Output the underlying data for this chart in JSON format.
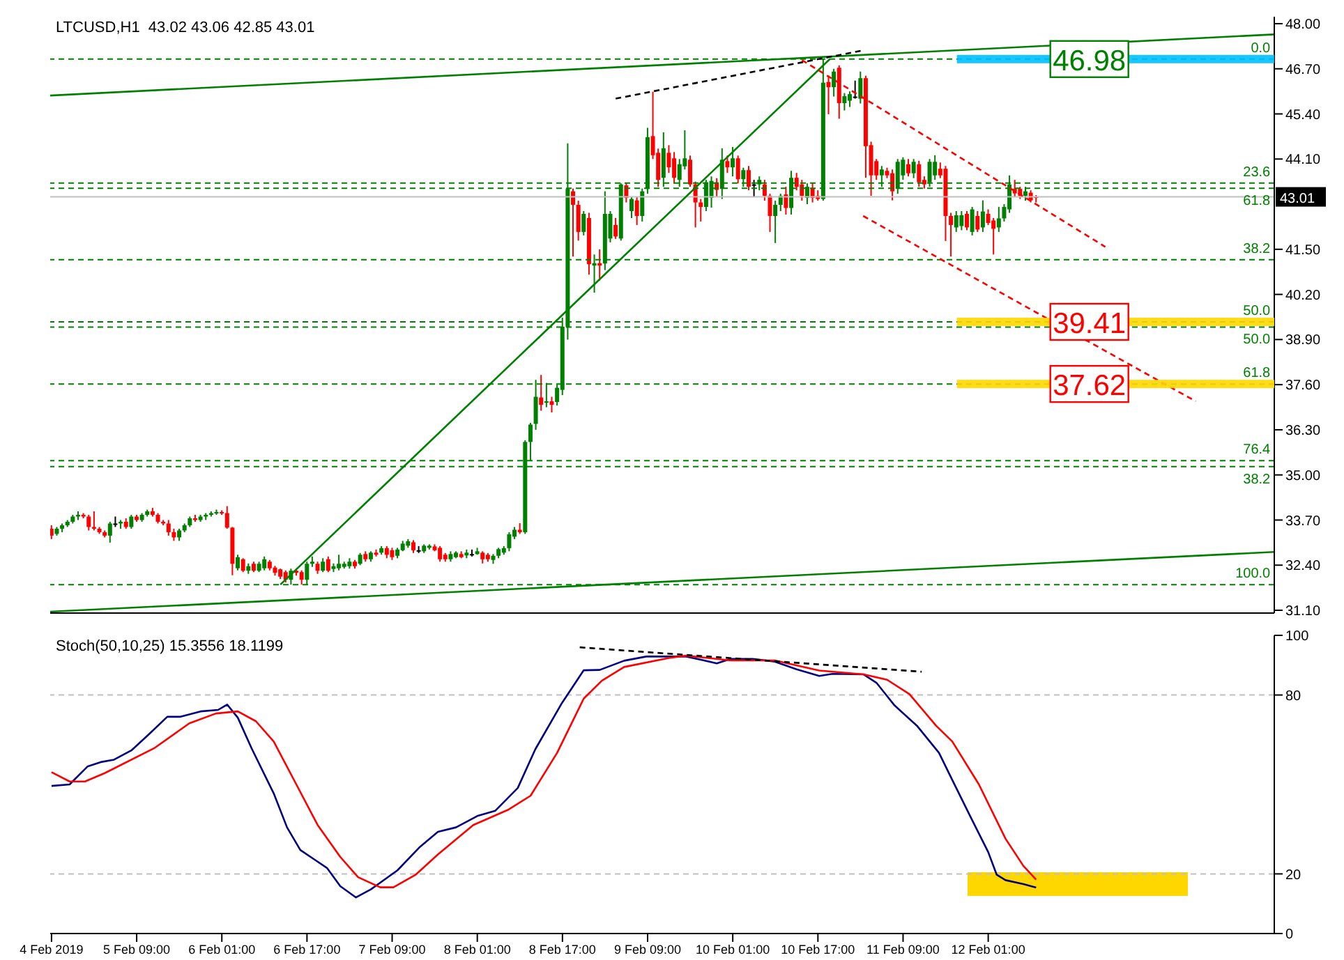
{
  "chart_data": [
    {
      "type": "candlestick",
      "title": "LTCUSD,H1  43.02 43.06 42.85 43.01",
      "xlim": [
        "2019-02-04T16:45",
        "2019-02-14T06:45"
      ],
      "tick_labels": "y",
      "ylim": [
        31.02,
        48.2
      ],
      "yticks": [
        {
          "value": 48,
          "label": "48.00"
        },
        {
          "value": 46.7,
          "label": "46.70"
        },
        {
          "value": 45.4,
          "label": "45.40"
        },
        {
          "value": 44.1,
          "label": "44.10"
        },
        {
          "value": 41.5,
          "label": "41.50"
        },
        {
          "value": 40.2,
          "label": "40.20"
        },
        {
          "value": 38.9,
          "label": "38.90"
        },
        {
          "value": 37.6,
          "label": "37.60"
        },
        {
          "value": 36.3,
          "label": "36.30"
        },
        {
          "value": 35,
          "label": "35.00"
        },
        {
          "value": 33.7,
          "label": "33.70"
        },
        {
          "value": 32.4,
          "label": "32.40"
        },
        {
          "value": 31.1,
          "label": "31.10"
        }
      ],
      "x": [
        "2019-02-04T17:00",
        "2019-02-04T18:00",
        "2019-02-04T19:00",
        "2019-02-04T20:00",
        "2019-02-04T21:00",
        "2019-02-04T22:00",
        "2019-02-04T23:00",
        "2019-02-05T00:00",
        "2019-02-05T01:00",
        "2019-02-05T02:00",
        "2019-02-05T03:00",
        "2019-02-05T04:00",
        "2019-02-05T05:00",
        "2019-02-05T06:00",
        "2019-02-05T07:00",
        "2019-02-05T08:00",
        "2019-02-05T09:00",
        "2019-02-05T10:00",
        "2019-02-05T11:00",
        "2019-02-05T12:00",
        "2019-02-05T13:00",
        "2019-02-05T14:00",
        "2019-02-05T15:00",
        "2019-02-05T16:00",
        "2019-02-05T17:00",
        "2019-02-05T18:00",
        "2019-02-05T19:00",
        "2019-02-05T20:00",
        "2019-02-05T21:00",
        "2019-02-05T22:00",
        "2019-02-05T23:00",
        "2019-02-06T00:00",
        "2019-02-06T01:00",
        "2019-02-06T02:00",
        "2019-02-06T03:00",
        "2019-02-06T04:00",
        "2019-02-06T05:00",
        "2019-02-06T06:00",
        "2019-02-06T07:00",
        "2019-02-06T08:00",
        "2019-02-06T09:00",
        "2019-02-06T10:00",
        "2019-02-06T11:00",
        "2019-02-06T12:00",
        "2019-02-06T13:00",
        "2019-02-06T14:00",
        "2019-02-06T15:00",
        "2019-02-06T16:00",
        "2019-02-06T17:00",
        "2019-02-06T18:00",
        "2019-02-06T19:00",
        "2019-02-06T20:00",
        "2019-02-06T21:00",
        "2019-02-06T22:00",
        "2019-02-06T23:00",
        "2019-02-07T00:00",
        "2019-02-07T01:00",
        "2019-02-07T02:00",
        "2019-02-07T03:00",
        "2019-02-07T04:00",
        "2019-02-07T05:00",
        "2019-02-07T06:00",
        "2019-02-07T07:00",
        "2019-02-07T08:00",
        "2019-02-07T09:00",
        "2019-02-07T10:00",
        "2019-02-07T11:00",
        "2019-02-07T12:00",
        "2019-02-07T13:00",
        "2019-02-07T14:00",
        "2019-02-07T15:00",
        "2019-02-07T16:00",
        "2019-02-07T17:00",
        "2019-02-07T18:00",
        "2019-02-07T19:00",
        "2019-02-07T20:00",
        "2019-02-07T21:00",
        "2019-02-07T22:00",
        "2019-02-07T23:00",
        "2019-02-08T00:00",
        "2019-02-08T01:00",
        "2019-02-08T02:00",
        "2019-02-08T03:00",
        "2019-02-08T04:00",
        "2019-02-08T05:00",
        "2019-02-08T06:00",
        "2019-02-08T07:00",
        "2019-02-08T08:00",
        "2019-02-08T09:00",
        "2019-02-08T10:00",
        "2019-02-08T11:00",
        "2019-02-08T12:00",
        "2019-02-08T13:00",
        "2019-02-08T14:00",
        "2019-02-08T15:00",
        "2019-02-08T16:00",
        "2019-02-08T17:00",
        "2019-02-08T18:00",
        "2019-02-08T19:00",
        "2019-02-08T20:00",
        "2019-02-08T21:00",
        "2019-02-08T22:00",
        "2019-02-08T23:00",
        "2019-02-09T00:00",
        "2019-02-09T01:00",
        "2019-02-09T02:00",
        "2019-02-09T03:00",
        "2019-02-09T04:00",
        "2019-02-09T05:00",
        "2019-02-09T06:00",
        "2019-02-09T07:00",
        "2019-02-09T08:00",
        "2019-02-09T09:00",
        "2019-02-09T10:00",
        "2019-02-09T11:00",
        "2019-02-09T12:00",
        "2019-02-09T13:00",
        "2019-02-09T14:00",
        "2019-02-09T15:00",
        "2019-02-09T16:00",
        "2019-02-09T17:00",
        "2019-02-09T18:00",
        "2019-02-09T19:00",
        "2019-02-09T20:00",
        "2019-02-09T21:00",
        "2019-02-09T22:00",
        "2019-02-09T23:00",
        "2019-02-10T00:00",
        "2019-02-10T01:00",
        "2019-02-10T02:00",
        "2019-02-10T03:00",
        "2019-02-10T04:00",
        "2019-02-10T05:00",
        "2019-02-10T06:00",
        "2019-02-10T07:00",
        "2019-02-10T08:00",
        "2019-02-10T09:00",
        "2019-02-10T10:00",
        "2019-02-10T11:00",
        "2019-02-10T12:00",
        "2019-02-10T13:00",
        "2019-02-10T14:00",
        "2019-02-10T15:00",
        "2019-02-10T16:00",
        "2019-02-10T17:00",
        "2019-02-10T18:00",
        "2019-02-10T19:00",
        "2019-02-10T20:00",
        "2019-02-10T21:00",
        "2019-02-10T22:00",
        "2019-02-10T23:00",
        "2019-02-11T00:00",
        "2019-02-11T01:00",
        "2019-02-11T02:00",
        "2019-02-11T03:00",
        "2019-02-11T04:00",
        "2019-02-11T05:00",
        "2019-02-11T06:00",
        "2019-02-11T07:00",
        "2019-02-11T08:00",
        "2019-02-11T09:00",
        "2019-02-11T10:00",
        "2019-02-11T11:00",
        "2019-02-11T12:00",
        "2019-02-11T13:00",
        "2019-02-11T14:00",
        "2019-02-11T15:00",
        "2019-02-11T16:00",
        "2019-02-11T17:00",
        "2019-02-11T18:00",
        "2019-02-11T19:00",
        "2019-02-11T20:00",
        "2019-02-11T21:00",
        "2019-02-11T22:00",
        "2019-02-11T23:00",
        "2019-02-12T00:00",
        "2019-02-12T01:00",
        "2019-02-12T02:00",
        "2019-02-12T03:00",
        "2019-02-12T04:00",
        "2019-02-12T05:00",
        "2019-02-12T06:00",
        "2019-02-12T07:00",
        "2019-02-12T08:00",
        "2019-02-12T09:00",
        "2019-02-12T10:00"
      ],
      "ohlc": [
        [
          33.45,
          33.55,
          33.15,
          33.25
        ],
        [
          33.3,
          33.5,
          33.25,
          33.45
        ],
        [
          33.45,
          33.6,
          33.35,
          33.55
        ],
        [
          33.55,
          33.7,
          33.5,
          33.65
        ],
        [
          33.65,
          33.85,
          33.6,
          33.8
        ],
        [
          33.8,
          33.95,
          33.7,
          33.85
        ],
        [
          33.85,
          33.9,
          33.75,
          33.8
        ],
        [
          33.8,
          33.85,
          33.4,
          33.5
        ],
        [
          33.5,
          33.95,
          33.4,
          33.45
        ],
        [
          33.45,
          33.5,
          33.3,
          33.35
        ],
        [
          33.35,
          33.4,
          33.2,
          33.25
        ],
        [
          33.25,
          33.65,
          33.05,
          33.6
        ],
        [
          33.6,
          33.8,
          33.5,
          33.6
        ],
        [
          33.6,
          33.7,
          33.45,
          33.65
        ],
        [
          33.65,
          33.75,
          33.45,
          33.5
        ],
        [
          33.5,
          33.85,
          33.45,
          33.8
        ],
        [
          33.8,
          33.85,
          33.65,
          33.7
        ],
        [
          33.7,
          33.9,
          33.65,
          33.85
        ],
        [
          33.85,
          34.0,
          33.8,
          33.95
        ],
        [
          33.95,
          34.05,
          33.8,
          33.85
        ],
        [
          33.85,
          33.9,
          33.6,
          33.65
        ],
        [
          33.65,
          33.7,
          33.55,
          33.6
        ],
        [
          33.6,
          33.7,
          33.25,
          33.35
        ],
        [
          33.35,
          33.45,
          33.1,
          33.2
        ],
        [
          33.2,
          33.45,
          33.1,
          33.4
        ],
        [
          33.4,
          33.6,
          33.35,
          33.55
        ],
        [
          33.55,
          33.8,
          33.5,
          33.75
        ],
        [
          33.75,
          33.85,
          33.65,
          33.7
        ],
        [
          33.7,
          33.85,
          33.65,
          33.8
        ],
        [
          33.8,
          33.9,
          33.7,
          33.85
        ],
        [
          33.85,
          33.95,
          33.8,
          33.9
        ],
        [
          33.9,
          34.0,
          33.85,
          33.93
        ],
        [
          33.93,
          33.98,
          33.85,
          33.9
        ],
        [
          33.9,
          34.1,
          33.45,
          33.48
        ],
        [
          33.48,
          33.5,
          32.11,
          32.44
        ],
        [
          32.31,
          32.7,
          32.25,
          32.63
        ],
        [
          32.57,
          32.6,
          32.2,
          32.24
        ],
        [
          32.24,
          32.45,
          32.15,
          32.37
        ],
        [
          32.44,
          32.5,
          32.2,
          32.24
        ],
        [
          32.24,
          32.5,
          32.2,
          32.44
        ],
        [
          32.31,
          32.65,
          32.25,
          32.57
        ],
        [
          32.5,
          32.55,
          32.25,
          32.31
        ],
        [
          32.33,
          32.38,
          32.1,
          32.18
        ],
        [
          32.28,
          32.3,
          32.0,
          32.07
        ],
        [
          32.2,
          32.25,
          31.9,
          31.98
        ],
        [
          31.98,
          32.3,
          31.84,
          32.24
        ],
        [
          32.24,
          32.3,
          32.1,
          32.18
        ],
        [
          32.2,
          32.25,
          31.84,
          31.98
        ],
        [
          31.98,
          32.5,
          31.84,
          32.44
        ],
        [
          32.44,
          32.65,
          32.35,
          32.5
        ],
        [
          32.44,
          32.5,
          32.15,
          32.24
        ],
        [
          32.24,
          32.6,
          32.2,
          32.5
        ],
        [
          32.57,
          32.65,
          32.2,
          32.24
        ],
        [
          32.29,
          32.45,
          32.2,
          32.37
        ],
        [
          32.31,
          32.7,
          32.25,
          32.44
        ],
        [
          32.35,
          32.5,
          32.3,
          32.44
        ],
        [
          32.37,
          32.6,
          32.3,
          32.5
        ],
        [
          32.5,
          32.55,
          32.3,
          32.37
        ],
        [
          32.44,
          32.75,
          32.4,
          32.7
        ],
        [
          32.72,
          32.8,
          32.5,
          32.57
        ],
        [
          32.57,
          32.8,
          32.5,
          32.76
        ],
        [
          32.76,
          32.85,
          32.65,
          32.7
        ],
        [
          32.76,
          32.95,
          32.7,
          32.89
        ],
        [
          32.89,
          32.95,
          32.6,
          32.7
        ],
        [
          32.83,
          32.9,
          32.55,
          32.63
        ],
        [
          32.67,
          32.9,
          32.6,
          32.85
        ],
        [
          32.83,
          33.1,
          32.8,
          33.02
        ],
        [
          32.96,
          33.15,
          32.9,
          33.09
        ],
        [
          33.06,
          33.12,
          32.75,
          32.83
        ],
        [
          32.83,
          32.95,
          32.75,
          32.83
        ],
        [
          32.8,
          33.0,
          32.75,
          32.96
        ],
        [
          32.9,
          33.0,
          32.85,
          32.96
        ],
        [
          32.94,
          33.0,
          32.8,
          32.83
        ],
        [
          32.9,
          32.95,
          32.5,
          32.57
        ],
        [
          32.7,
          32.75,
          32.5,
          32.57
        ],
        [
          32.57,
          32.8,
          32.5,
          32.72
        ],
        [
          32.63,
          32.8,
          32.6,
          32.76
        ],
        [
          32.72,
          32.8,
          32.6,
          32.63
        ],
        [
          32.68,
          32.85,
          32.6,
          32.76
        ],
        [
          32.72,
          32.85,
          32.65,
          32.72
        ],
        [
          32.72,
          32.9,
          32.7,
          32.8
        ],
        [
          32.76,
          32.8,
          32.45,
          32.57
        ],
        [
          32.7,
          32.75,
          32.5,
          32.57
        ],
        [
          32.55,
          32.72,
          32.44,
          32.67
        ],
        [
          32.67,
          32.9,
          32.6,
          32.86
        ],
        [
          32.76,
          32.95,
          32.7,
          32.89
        ],
        [
          32.89,
          33.35,
          32.8,
          33.29
        ],
        [
          33.22,
          33.5,
          33.15,
          33.42
        ],
        [
          33.42,
          33.61,
          33.3,
          33.35
        ],
        [
          33.35,
          36.0,
          33.3,
          35.95
        ],
        [
          35.95,
          36.5,
          35.4,
          36.45
        ],
        [
          36.47,
          37.74,
          36.3,
          37.25
        ],
        [
          37.23,
          37.88,
          36.85,
          37.02
        ],
        [
          37.1,
          37.65,
          36.95,
          37.12
        ],
        [
          37.12,
          37.25,
          36.8,
          37.02
        ],
        [
          37.1,
          37.6,
          37.0,
          37.51
        ],
        [
          37.45,
          39.53,
          37.3,
          39.27
        ],
        [
          39.27,
          44.55,
          38.9,
          43.24
        ],
        [
          43.17,
          43.25,
          41.29,
          42.78
        ],
        [
          42.78,
          42.9,
          41.75,
          42.0
        ],
        [
          42.0,
          42.6,
          41.9,
          42.52
        ],
        [
          42.4,
          42.55,
          40.77,
          41.07
        ],
        [
          41.03,
          41.35,
          40.25,
          41.1
        ],
        [
          41.1,
          41.5,
          40.6,
          41.03
        ],
        [
          41.09,
          43.17,
          40.9,
          42.52
        ],
        [
          41.81,
          42.6,
          41.7,
          42.52
        ],
        [
          42.2,
          42.4,
          41.8,
          41.87
        ],
        [
          41.81,
          43.4,
          41.75,
          43.37
        ],
        [
          43.34,
          43.4,
          42.85,
          42.98
        ],
        [
          42.6,
          43.0,
          42.4,
          42.95
        ],
        [
          42.91,
          43.0,
          42.2,
          42.46
        ],
        [
          42.46,
          43.25,
          42.3,
          43.17
        ],
        [
          43.24,
          45.0,
          43.1,
          44.73
        ],
        [
          44.76,
          46.04,
          44.1,
          44.21
        ],
        [
          44.28,
          44.4,
          43.3,
          43.5
        ],
        [
          43.56,
          44.87,
          43.3,
          44.41
        ],
        [
          44.28,
          44.5,
          43.7,
          43.86
        ],
        [
          44.12,
          44.3,
          43.4,
          43.56
        ],
        [
          43.5,
          44.1,
          43.3,
          43.95
        ],
        [
          43.89,
          44.93,
          43.8,
          44.12
        ],
        [
          44.08,
          44.2,
          43.3,
          43.37
        ],
        [
          43.37,
          43.45,
          42.13,
          42.85
        ],
        [
          42.85,
          42.95,
          42.3,
          42.72
        ],
        [
          42.72,
          43.5,
          42.6,
          43.43
        ],
        [
          42.98,
          43.6,
          42.7,
          43.47
        ],
        [
          43.43,
          43.55,
          43.0,
          43.21
        ],
        [
          43.24,
          44.41,
          42.95,
          44.08
        ],
        [
          44.04,
          44.2,
          43.7,
          43.86
        ],
        [
          43.86,
          44.45,
          43.6,
          44.12
        ],
        [
          44.12,
          44.2,
          43.4,
          43.52
        ],
        [
          43.52,
          43.85,
          43.3,
          43.78
        ],
        [
          43.78,
          43.9,
          43.2,
          43.3
        ],
        [
          43.37,
          43.5,
          43.0,
          43.37
        ],
        [
          43.37,
          43.6,
          43.2,
          43.5
        ],
        [
          43.37,
          43.5,
          42.9,
          43.04
        ],
        [
          43.04,
          43.1,
          42.0,
          42.46
        ],
        [
          42.46,
          42.9,
          41.68,
          42.78
        ],
        [
          42.78,
          43.1,
          42.6,
          43.04
        ],
        [
          43.08,
          43.3,
          42.5,
          42.69
        ],
        [
          42.69,
          43.76,
          42.5,
          43.56
        ],
        [
          43.56,
          43.7,
          43.2,
          43.3
        ],
        [
          43.37,
          43.5,
          42.9,
          43.04
        ],
        [
          42.98,
          43.4,
          42.8,
          43.3
        ],
        [
          43.26,
          43.4,
          42.85,
          42.98
        ],
        [
          43.04,
          43.2,
          42.9,
          42.95
        ],
        [
          42.95,
          46.98,
          42.9,
          46.3
        ],
        [
          46.32,
          46.5,
          45.39,
          46.17
        ],
        [
          46.17,
          46.7,
          45.9,
          46.62
        ],
        [
          46.73,
          46.8,
          45.26,
          45.71
        ],
        [
          45.71,
          46.0,
          45.5,
          45.91
        ],
        [
          45.78,
          46.05,
          45.6,
          45.97
        ],
        [
          45.9,
          46.36,
          45.84,
          45.9
        ],
        [
          45.84,
          46.62,
          45.7,
          46.43
        ],
        [
          46.43,
          46.5,
          43.56,
          44.47
        ],
        [
          44.5,
          44.6,
          43.04,
          43.63
        ],
        [
          44.04,
          44.1,
          43.5,
          43.63
        ],
        [
          43.63,
          43.9,
          43.3,
          43.8
        ],
        [
          43.76,
          43.85,
          43.55,
          43.63
        ],
        [
          43.69,
          43.8,
          42.91,
          43.17
        ],
        [
          43.24,
          44.1,
          43.1,
          44.02
        ],
        [
          43.63,
          44.15,
          43.5,
          44.08
        ],
        [
          43.95,
          44.1,
          43.6,
          43.69
        ],
        [
          43.69,
          44.1,
          43.55,
          44.02
        ],
        [
          43.95,
          44.05,
          43.3,
          43.43
        ],
        [
          43.5,
          43.6,
          43.25,
          43.37
        ],
        [
          43.43,
          44.1,
          43.3,
          44.02
        ],
        [
          43.63,
          44.21,
          43.5,
          44.02
        ],
        [
          43.82,
          44.0,
          43.55,
          43.63
        ],
        [
          43.82,
          43.9,
          41.74,
          42.46
        ],
        [
          42.46,
          42.55,
          41.29,
          42.2
        ],
        [
          42.13,
          42.6,
          42.0,
          42.48
        ],
        [
          42.17,
          42.6,
          42.05,
          42.48
        ],
        [
          42.52,
          42.6,
          42.05,
          42.13
        ],
        [
          42.0,
          42.72,
          41.9,
          42.65
        ],
        [
          42.46,
          42.6,
          42.0,
          42.07
        ],
        [
          42.13,
          42.91,
          42.0,
          42.59
        ],
        [
          42.52,
          42.65,
          42.2,
          42.26
        ],
        [
          42.33,
          42.4,
          41.35,
          42.09
        ],
        [
          42.13,
          42.72,
          42.0,
          42.39
        ],
        [
          42.39,
          42.8,
          42.3,
          42.72
        ],
        [
          42.65,
          43.63,
          42.55,
          43.37
        ],
        [
          43.24,
          43.5,
          43.0,
          43.11
        ],
        [
          43.24,
          43.3,
          42.95,
          43.04
        ],
        [
          43.04,
          43.3,
          42.9,
          43.17
        ],
        [
          43.13,
          43.2,
          42.85,
          42.91
        ],
        [
          43.02,
          43.06,
          42.85,
          43.01
        ]
      ],
      "colors": [
        "#ff0000",
        "#008000",
        "#008000",
        "#008000",
        "#008000",
        "#008000",
        "#ff0000",
        "#ff0000",
        "#ff0000",
        "#ff0000",
        "#ff0000",
        "#008000",
        "#000000",
        "#008000",
        "#ff0000",
        "#008000",
        "#ff0000",
        "#008000",
        "#008000",
        "#ff0000",
        "#ff0000",
        "#ff0000",
        "#ff0000",
        "#ff0000",
        "#008000",
        "#008000",
        "#008000",
        "#ff0000",
        "#008000",
        "#008000",
        "#008000",
        "#008000",
        "#ff0000",
        "#ff0000",
        "#ff0000",
        "#008000",
        "#ff0000",
        "#008000",
        "#ff0000",
        "#008000",
        "#008000",
        "#ff0000",
        "#ff0000",
        "#ff0000",
        "#ff0000",
        "#008000",
        "#ff0000",
        "#ff0000",
        "#008000",
        "#008000",
        "#ff0000",
        "#008000",
        "#ff0000",
        "#008000",
        "#008000",
        "#008000",
        "#008000",
        "#ff0000",
        "#008000",
        "#ff0000",
        "#008000",
        "#ff0000",
        "#008000",
        "#ff0000",
        "#ff0000",
        "#008000",
        "#008000",
        "#008000",
        "#ff0000",
        "#000000",
        "#008000",
        "#008000",
        "#ff0000",
        "#ff0000",
        "#ff0000",
        "#008000",
        "#008000",
        "#ff0000",
        "#008000",
        "#000000",
        "#008000",
        "#ff0000",
        "#ff0000",
        "#008000",
        "#008000",
        "#008000",
        "#008000",
        "#008000",
        "#ff0000",
        "#008000",
        "#008000",
        "#008000",
        "#ff0000",
        "#008000",
        "#ff0000",
        "#008000",
        "#008000",
        "#008000",
        "#ff0000",
        "#ff0000",
        "#008000",
        "#ff0000",
        "#008000",
        "#ff0000",
        "#008000",
        "#008000",
        "#ff0000",
        "#008000",
        "#ff0000",
        "#008000",
        "#ff0000",
        "#008000",
        "#008000",
        "#ff0000",
        "#ff0000",
        "#008000",
        "#ff0000",
        "#ff0000",
        "#008000",
        "#008000",
        "#ff0000",
        "#ff0000",
        "#ff0000",
        "#008000",
        "#008000",
        "#ff0000",
        "#008000",
        "#ff0000",
        "#008000",
        "#ff0000",
        "#008000",
        "#ff0000",
        "#000000",
        "#008000",
        "#ff0000",
        "#ff0000",
        "#008000",
        "#008000",
        "#ff0000",
        "#008000",
        "#ff0000",
        "#ff0000",
        "#008000",
        "#ff0000",
        "#ff0000",
        "#008000",
        "#ff0000",
        "#008000",
        "#ff0000",
        "#008000",
        "#008000",
        "#000000",
        "#008000",
        "#ff0000",
        "#ff0000",
        "#ff0000",
        "#008000",
        "#ff0000",
        "#ff0000",
        "#008000",
        "#008000",
        "#ff0000",
        "#008000",
        "#ff0000",
        "#ff0000",
        "#008000",
        "#008000",
        "#ff0000",
        "#ff0000",
        "#ff0000",
        "#008000",
        "#008000",
        "#ff0000",
        "#008000",
        "#ff0000",
        "#008000",
        "#ff0000",
        "#ff0000",
        "#008000",
        "#008000",
        "#008000",
        "#ff0000",
        "#ff0000",
        "#008000",
        "#ff0000",
        "#ff0000"
      ],
      "series": [
        {
          "type": "line",
          "x": [
            "2019-02-04T16:45",
            "2019-02-14T06:45"
          ],
          "values": [
            45.93,
            47.69
          ],
          "color": "#008000",
          "line_style": "solid"
        },
        {
          "type": "line",
          "x": [
            "2019-02-04T16:45",
            "2019-02-14T06:45"
          ],
          "values": [
            31.06,
            32.78
          ],
          "color": "#008000",
          "line_style": "solid"
        },
        {
          "type": "line",
          "x": [
            "2019-02-06T12:00",
            "2019-02-10T19:15"
          ],
          "values": [
            31.84,
            46.98
          ],
          "color": "#008000",
          "line_style": "solid"
        },
        {
          "type": "line",
          "x": [
            "2019-02-09T03:00",
            "2019-02-11T01:30"
          ],
          "values": [
            45.84,
            47.23
          ],
          "color": "#000000",
          "line_style": "dashed"
        },
        {
          "type": "line",
          "x": [
            "2019-02-10T14:00",
            "2019-02-12T23:00"
          ],
          "values": [
            46.95,
            41.57
          ],
          "color": "#ff0000",
          "line_style": "dashed"
        },
        {
          "type": "line",
          "x": [
            "2019-02-11T01:30",
            "2019-02-13T16:00"
          ],
          "values": [
            42.46,
            37.12
          ],
          "color": "#ff0000",
          "line_style": "dashed"
        }
      ],
      "ref_lines": [
        {
          "axis": "y",
          "value": 46.98,
          "color": "#008000",
          "line_style": "dashed"
        },
        {
          "axis": "y",
          "value": 43.41,
          "color": "#008000",
          "line_style": "dashed"
        },
        {
          "axis": "y",
          "value": 41.2,
          "color": "#008000",
          "line_style": "dashed"
        },
        {
          "axis": "y",
          "value": 39.41,
          "color": "#008000",
          "line_style": "dashed"
        },
        {
          "axis": "y",
          "value": 37.62,
          "color": "#008000",
          "line_style": "dashed"
        },
        {
          "axis": "y",
          "value": 35.41,
          "color": "#008000",
          "line_style": "dashed"
        },
        {
          "axis": "y",
          "value": 31.84,
          "color": "#008000",
          "line_style": "dashed"
        },
        {
          "axis": "y",
          "value": 43.26,
          "color": "#008000",
          "line_style": "dashed"
        },
        {
          "axis": "y",
          "value": 39.26,
          "color": "#008000",
          "line_style": "dashed"
        },
        {
          "axis": "y",
          "value": 35.24,
          "color": "#008000",
          "line_style": "dashed"
        },
        {
          "axis": "y",
          "value": 43.01,
          "label": "43.01",
          "color": "#c0c0c0",
          "line_style": "solid"
        }
      ],
      "annotations": [
        {
          "text": "46.98",
          "x": "2019-02-12T20:00",
          "y": 46.98
        },
        {
          "text": "39.41",
          "x": "2019-02-12T20:00",
          "y": 39.41
        },
        {
          "text": "37.62",
          "x": "2019-02-12T20:00",
          "y": 37.62
        },
        {
          "text": "0.0",
          "x": "2019-02-14T06:00",
          "y": 46.98
        },
        {
          "text": "23.6",
          "x": "2019-02-14T06:00",
          "y": 43.41
        },
        {
          "text": "38.2",
          "x": "2019-02-14T06:00",
          "y": 41.2
        },
        {
          "text": "50.0",
          "x": "2019-02-14T06:00",
          "y": 39.41
        },
        {
          "text": "61.8",
          "x": "2019-02-14T06:00",
          "y": 37.62
        },
        {
          "text": "76.4",
          "x": "2019-02-14T06:00",
          "y": 35.41
        },
        {
          "text": "100.0",
          "x": "2019-02-14T06:00",
          "y": 31.84
        },
        {
          "text": "61.8",
          "x": "2019-02-14T06:00",
          "y": 43.26
        },
        {
          "text": "50.0",
          "x": "2019-02-14T06:00",
          "y": 39.26
        },
        {
          "text": "38.2",
          "x": "2019-02-14T06:00",
          "y": 35.24
        }
      ]
    },
    {
      "type": "line",
      "title": "Stoch(50,10,25) 15.3556 18.1199",
      "xlim": [
        "2019-02-04T16:45",
        "2019-02-14T06:45"
      ],
      "xticks": [
        {
          "value": "2019-02-04T17:00",
          "label": "4 Feb 2019"
        },
        {
          "value": "2019-02-05T09:00",
          "label": "5 Feb 09:00"
        },
        {
          "value": "2019-02-06T01:00",
          "label": "6 Feb 01:00"
        },
        {
          "value": "2019-02-06T17:00",
          "label": "6 Feb 17:00"
        },
        {
          "value": "2019-02-07T09:00",
          "label": "7 Feb 09:00"
        },
        {
          "value": "2019-02-08T01:00",
          "label": "8 Feb 01:00"
        },
        {
          "value": "2019-02-08T17:00",
          "label": "8 Feb 17:00"
        },
        {
          "value": "2019-02-09T09:00",
          "label": "9 Feb 09:00"
        },
        {
          "value": "2019-02-10T01:00",
          "label": "10 Feb 01:00"
        },
        {
          "value": "2019-02-10T17:00",
          "label": "10 Feb 17:00"
        },
        {
          "value": "2019-02-11T09:00",
          "label": "11 Feb 09:00"
        },
        {
          "value": "2019-02-12T01:00",
          "label": "12 Feb 01:00"
        }
      ],
      "ylim": [
        0,
        100
      ],
      "yticks": [
        0,
        20,
        80,
        100
      ],
      "series": [
        {
          "color": "#000080",
          "x": [
            "2019-02-04T17:00",
            "2019-02-04T20:24",
            "2019-02-04T23:45",
            "2019-02-05T02:15",
            "2019-02-05T04:45",
            "2019-02-05T08:00",
            "2019-02-05T11:24",
            "2019-02-05T14:45",
            "2019-02-05T17:15",
            "2019-02-05T21:00",
            "2019-02-06T00:18",
            "2019-02-06T02:00",
            "2019-02-06T04:00",
            "2019-02-06T06:36",
            "2019-02-06T10:45",
            "2019-02-06T13:15",
            "2019-02-06T15:45",
            "2019-02-06T18:15",
            "2019-02-06T20:45",
            "2019-02-06T23:15",
            "2019-02-07T02:12",
            "2019-02-07T05:00",
            "2019-02-07T10:00",
            "2019-02-07T14:15",
            "2019-02-07T17:36",
            "2019-02-07T21:00",
            "2019-02-08T01:00",
            "2019-02-08T04:24",
            "2019-02-08T08:36",
            "2019-02-08T11:54",
            "2019-02-08T16:54",
            "2019-02-08T21:00",
            "2019-02-09T00:00",
            "2019-02-09T04:36",
            "2019-02-09T08:45",
            "2019-02-09T16:15",
            "2019-02-09T19:36",
            "2019-02-09T22:00",
            "2019-02-10T00:36",
            "2019-02-10T04:45",
            "2019-02-10T08:54",
            "2019-02-10T13:00",
            "2019-02-10T17:15",
            "2019-02-10T19:45",
            "2019-02-11T01:36",
            "2019-02-11T04:00",
            "2019-02-11T07:24",
            "2019-02-11T11:36",
            "2019-02-11T15:45",
            "2019-02-11T18:15",
            "2019-02-11T21:36",
            "2019-02-12T01:00",
            "2019-02-12T02:36",
            "2019-02-12T04:15",
            "2019-02-12T07:36",
            "2019-02-12T10:00"
          ],
          "values": [
            49.5,
            50.0,
            56.0,
            57.5,
            58.3,
            61.4,
            67.0,
            72.7,
            72.7,
            74.5,
            75.0,
            76.8,
            72.4,
            62.1,
            47.0,
            35.6,
            28.0,
            25.0,
            22.0,
            15.9,
            12.1,
            14.8,
            21.2,
            29.1,
            34.1,
            35.6,
            39.4,
            41.2,
            48.8,
            61.8,
            77.3,
            88.3,
            88.4,
            91.5,
            92.9,
            92.9,
            91.6,
            90.6,
            92.1,
            92.1,
            91.2,
            88.6,
            86.4,
            87.1,
            86.9,
            84.1,
            76.5,
            69.7,
            60.6,
            51.5,
            39.4,
            27.3,
            19.7,
            17.9,
            16.6,
            15.4
          ]
        },
        {
          "color": "#ff0000",
          "x": [
            "2019-02-04T17:00",
            "2019-02-04T20:24",
            "2019-02-04T23:18",
            "2019-02-05T03:00",
            "2019-02-05T12:15",
            "2019-02-05T18:54",
            "2019-02-05T23:54",
            "2019-02-06T04:00",
            "2019-02-06T07:24",
            "2019-02-06T10:45",
            "2019-02-06T15:00",
            "2019-02-06T19:00",
            "2019-02-06T23:15",
            "2019-02-07T02:36",
            "2019-02-07T06:45",
            "2019-02-07T09:15",
            "2019-02-07T13:24",
            "2019-02-07T17:36",
            "2019-02-08T00:15",
            "2019-02-08T06:54",
            "2019-02-08T11:00",
            "2019-02-08T16:00",
            "2019-02-08T21:00",
            "2019-02-09T00:24",
            "2019-02-09T04:36",
            "2019-02-09T13:00",
            "2019-02-09T16:15",
            "2019-02-10T00:36",
            "2019-02-10T08:54",
            "2019-02-10T17:15",
            "2019-02-11T01:36",
            "2019-02-11T06:00",
            "2019-02-11T10:12",
            "2019-02-11T15:12",
            "2019-02-11T18:15",
            "2019-02-11T23:15",
            "2019-02-12T04:15",
            "2019-02-12T07:36",
            "2019-02-12T10:00"
          ],
          "values": [
            54.1,
            51.0,
            51.0,
            53.8,
            62.1,
            70.5,
            73.8,
            74.5,
            71.2,
            64.4,
            50.0,
            36.4,
            25.7,
            18.9,
            15.5,
            15.5,
            19.7,
            26.5,
            36.4,
            41.6,
            46.2,
            60.6,
            78.8,
            84.8,
            89.4,
            92.4,
            93.2,
            91.6,
            91.6,
            88.2,
            86.9,
            85.1,
            80.3,
            69.7,
            64.4,
            50.0,
            31.8,
            22.7,
            18.1
          ]
        },
        {
          "color": "#000000",
          "line_style": "dashed",
          "x": [
            "2019-02-08T20:15",
            "2019-02-11T12:30"
          ],
          "values": [
            96.0,
            87.8
          ]
        }
      ],
      "ref_lines": [
        {
          "axis": "y",
          "value": 80,
          "color": "#c0c0c0",
          "line_style": "dashed"
        },
        {
          "axis": "y",
          "value": 20,
          "color": "#c0c0c0",
          "line_style": "dashed"
        }
      ]
    }
  ]
}
